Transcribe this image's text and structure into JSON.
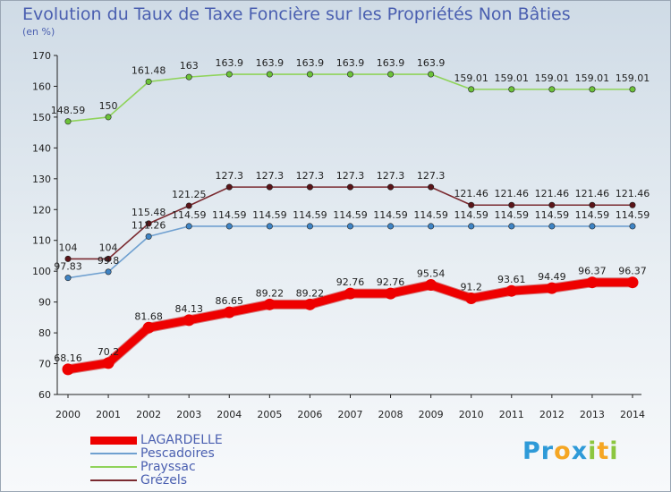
{
  "chart_data": {
    "type": "line",
    "title": "Evolution du Taux de Taxe Foncière sur les Propriétés Non Bâties",
    "ylabel": "(en %)",
    "xlabel": "",
    "ylim": [
      60,
      170
    ],
    "yticks": [
      "60",
      "70",
      "80",
      "90",
      "100",
      "110",
      "120",
      "130",
      "140",
      "150",
      "160",
      "170"
    ],
    "categories": [
      "2000",
      "2001",
      "2002",
      "2003",
      "2004",
      "2005",
      "2006",
      "2007",
      "2008",
      "2009",
      "2010",
      "2011",
      "2012",
      "2013",
      "2014"
    ],
    "grid": false,
    "legend_position": "bottom-left",
    "series": [
      {
        "name": "Prayssac",
        "color": "#8fd35a",
        "marker": "#6cc23a",
        "values": [
          148.59,
          150,
          161.48,
          163,
          163.9,
          163.9,
          163.9,
          163.9,
          163.9,
          163.9,
          159.01,
          159.01,
          159.01,
          159.01,
          159.01
        ],
        "labels": [
          "148.59",
          "150",
          "161.48",
          "163",
          "163.9",
          "163.9",
          "163.9",
          "163.9",
          "163.9",
          "163.9",
          "159.01",
          "159.01",
          "159.01",
          "159.01",
          "159.01"
        ]
      },
      {
        "name": "Grézels",
        "color": "#7a2a30",
        "marker": "#5a1418",
        "values": [
          104,
          104,
          115.48,
          121.25,
          127.3,
          127.3,
          127.3,
          127.3,
          127.3,
          127.3,
          121.46,
          121.46,
          121.46,
          121.46,
          121.46
        ],
        "labels": [
          "104",
          "104",
          "115.48",
          "121.25",
          "127.3",
          "127.3",
          "127.3",
          "127.3",
          "127.3",
          "127.3",
          "121.46",
          "121.46",
          "121.46",
          "121.46",
          "121.46"
        ]
      },
      {
        "name": "Pescadoires",
        "color": "#6fa0d0",
        "marker": "#3f84c4",
        "values": [
          97.83,
          99.8,
          111.26,
          114.59,
          114.59,
          114.59,
          114.59,
          114.59,
          114.59,
          114.59,
          114.59,
          114.59,
          114.59,
          114.59,
          114.59
        ],
        "labels": [
          "97.83",
          "99.8",
          "111.26",
          "114.59",
          "114.59",
          "114.59",
          "114.59",
          "114.59",
          "114.59",
          "114.59",
          "114.59",
          "114.59",
          "114.59",
          "114.59",
          "114.59"
        ]
      },
      {
        "name": "LAGARDELLE",
        "color": "#ee0000",
        "marker": "#ee0000",
        "values": [
          68.16,
          70.2,
          81.68,
          84.13,
          86.65,
          89.22,
          89.22,
          92.76,
          92.76,
          95.54,
          91.2,
          93.61,
          94.49,
          96.37,
          96.37
        ],
        "labels": [
          "68.16",
          "70.2",
          "81.68",
          "84.13",
          "86.65",
          "89.22",
          "89.22",
          "92.76",
          "92.76",
          "95.54",
          "91.2",
          "93.61",
          "94.49",
          "96.37",
          "96.37"
        ]
      }
    ]
  },
  "legend": [
    {
      "name": "LAGARDELLE",
      "color": "#ee0000",
      "thickness": 9
    },
    {
      "name": "Pescadoires",
      "color": "#6fa0d0",
      "thickness": 2
    },
    {
      "name": "Prayssac",
      "color": "#8fd35a",
      "thickness": 2
    },
    {
      "name": "Grézels",
      "color": "#7a2a30",
      "thickness": 2
    }
  ],
  "brand": {
    "letters": [
      "P",
      "r",
      "o",
      "x",
      "i",
      "t",
      "i"
    ],
    "colors": [
      "#2e9ad8",
      "#2e9ad8",
      "#f5a623",
      "#2e9ad8",
      "#8cc63f",
      "#f5a623",
      "#8cc63f"
    ]
  }
}
